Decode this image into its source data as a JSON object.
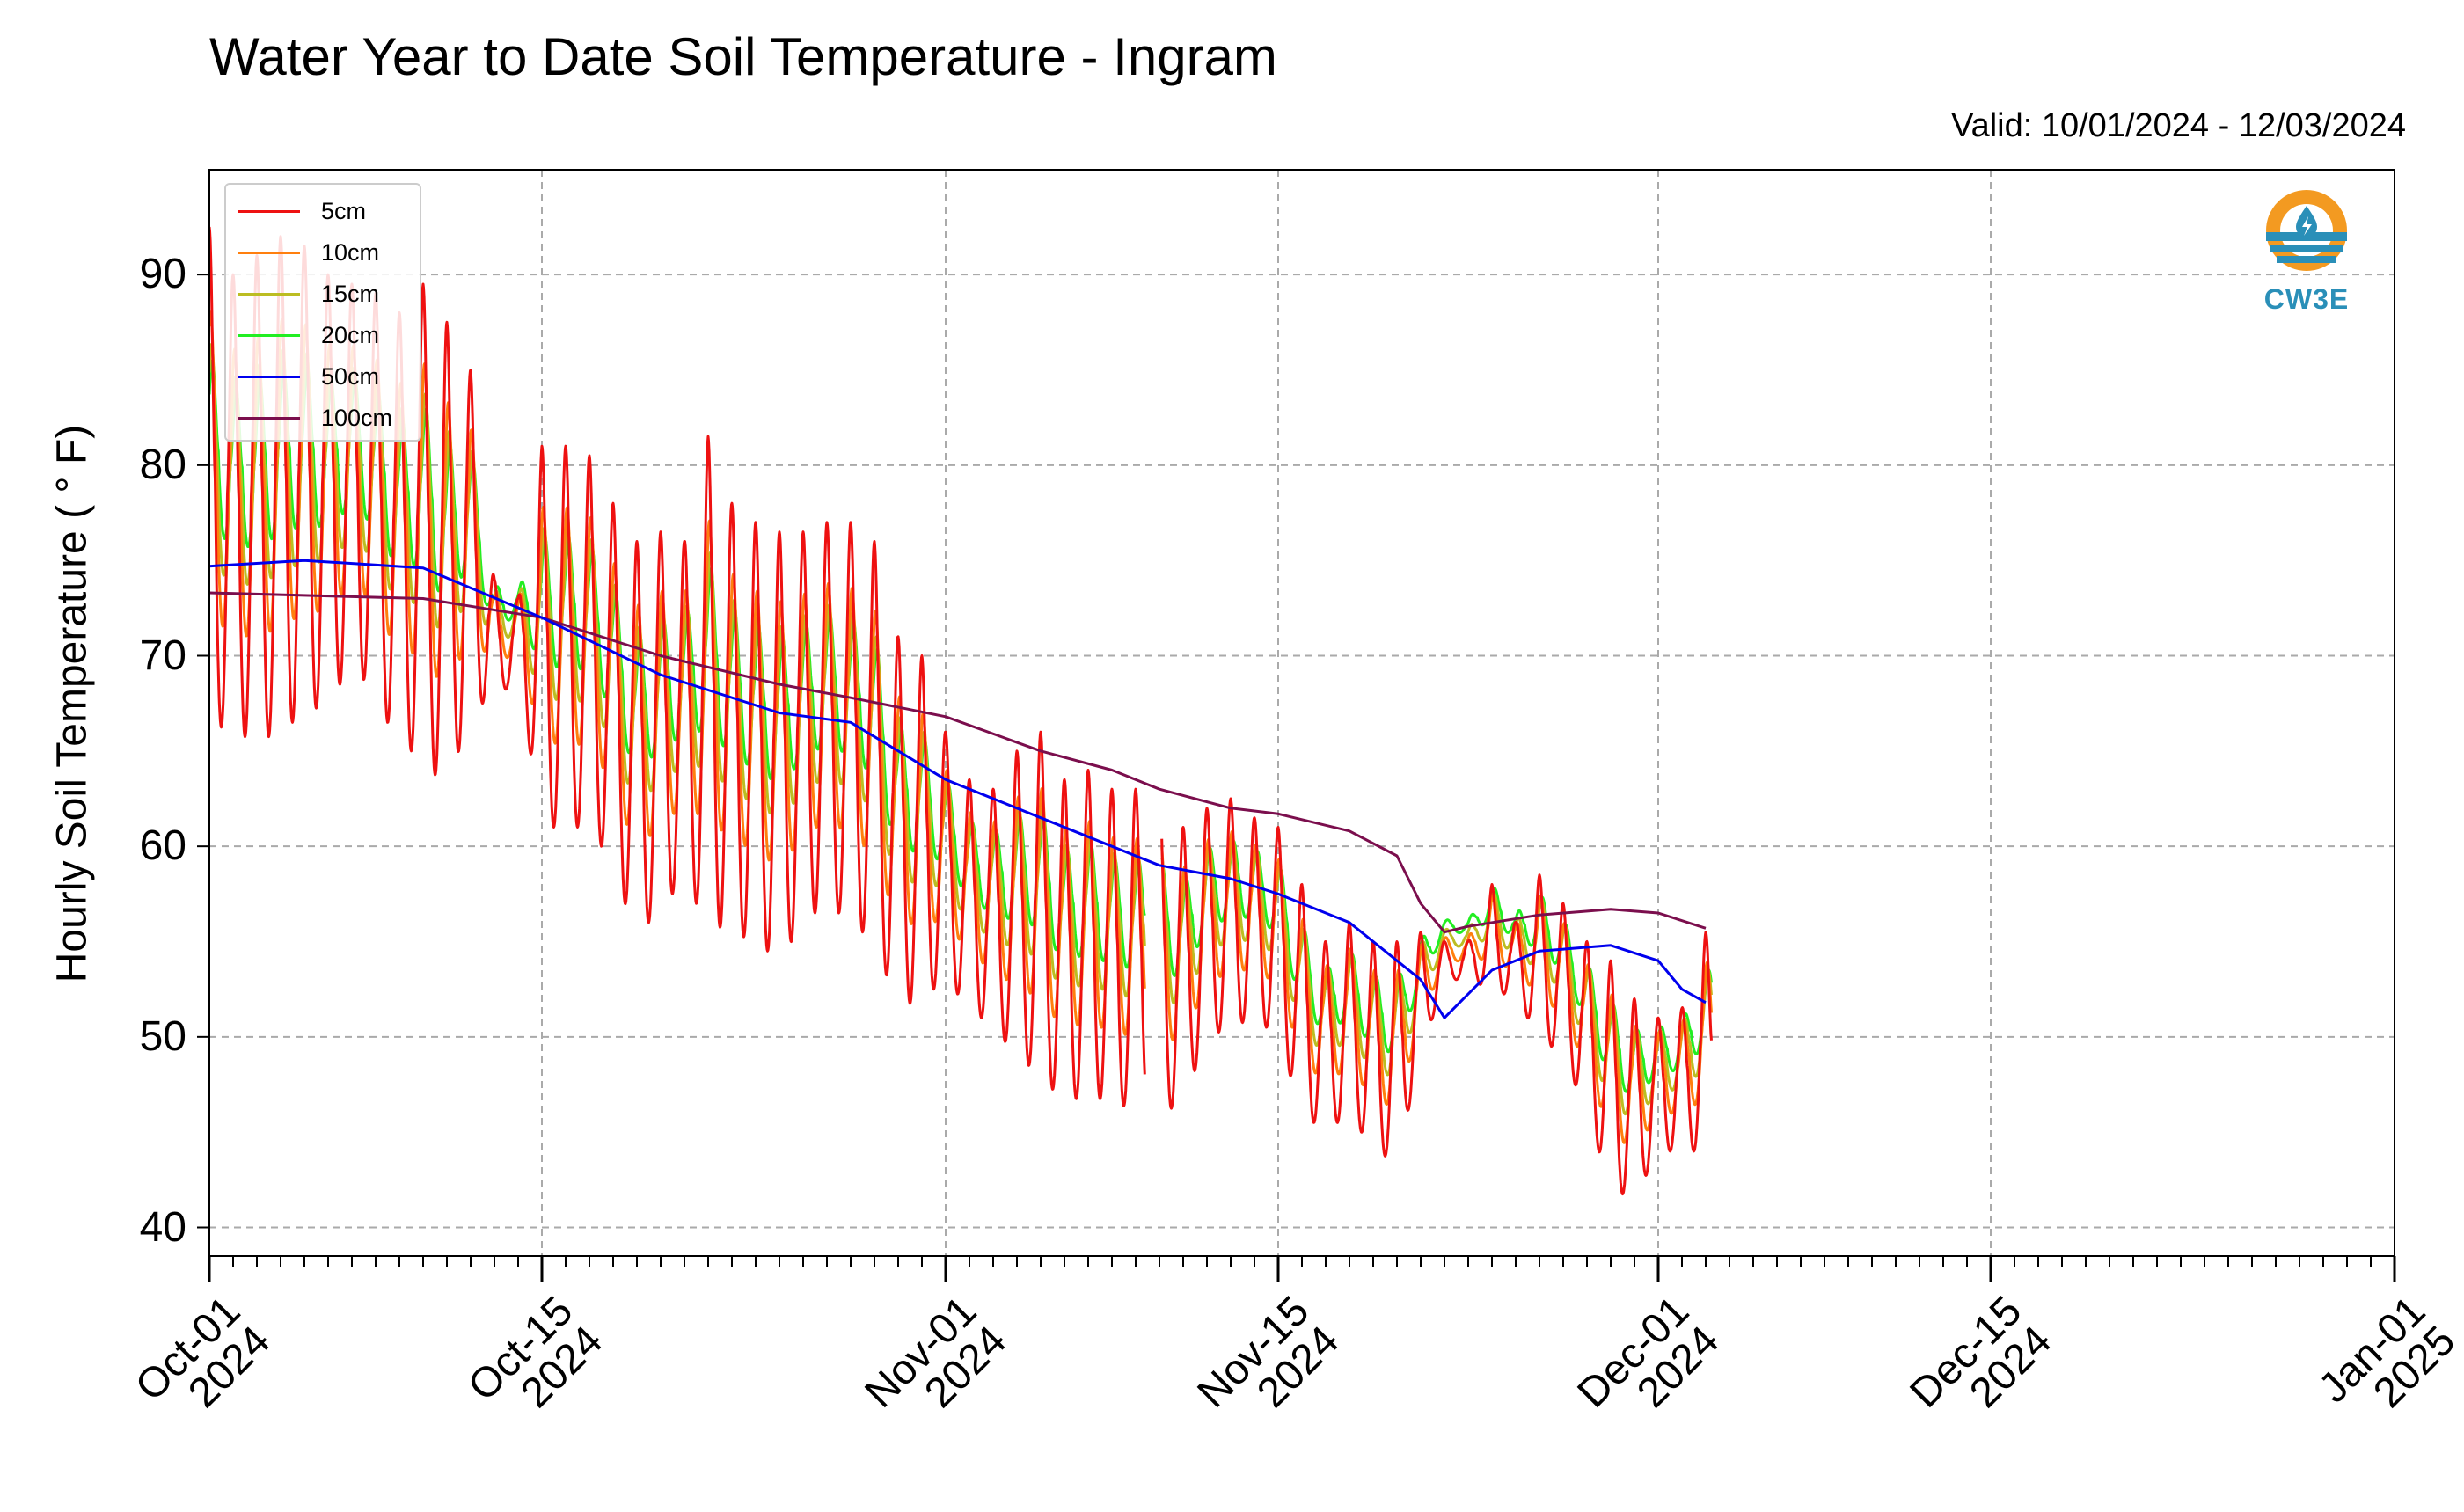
{
  "chart_data": {
    "type": "line",
    "title": "Water Year to Date Soil Temperature - Ingram",
    "subtitle": "Valid: 10/01/2024 - 12/03/2024",
    "xlabel": "",
    "ylabel": "Hourly Soil Temperature ($^\\circ$F)",
    "ylabel_display": "Hourly Soil Temperature ( ° F)",
    "xlim": [
      "2024-10-01",
      "2025-01-01"
    ],
    "ylim": [
      38.5,
      95.5
    ],
    "yticks": [
      40,
      50,
      60,
      70,
      80,
      90
    ],
    "xticks": [
      {
        "date": "2024-10-01",
        "label": "Oct-01\n2024"
      },
      {
        "date": "2024-10-15",
        "label": "Oct-15\n2024"
      },
      {
        "date": "2024-11-01",
        "label": "Nov-01\n2024"
      },
      {
        "date": "2024-11-15",
        "label": "Nov-15\n2024"
      },
      {
        "date": "2024-12-01",
        "label": "Dec-01\n2024"
      },
      {
        "date": "2024-12-15",
        "label": "Dec-15\n2024"
      },
      {
        "date": "2025-01-01",
        "label": "Jan-01\n2025"
      }
    ],
    "grid": true,
    "legend_position": "top-left",
    "series": [
      {
        "name": "5cm",
        "color": "#ee1111",
        "peak_dates": [
          "2024-10-01",
          "2024-10-02",
          "2024-10-03",
          "2024-10-04",
          "2024-10-05",
          "2024-10-06",
          "2024-10-07",
          "2024-10-08",
          "2024-10-09",
          "2024-10-10",
          "2024-10-11",
          "2024-10-12",
          "2024-10-13",
          "2024-10-14",
          "2024-10-15",
          "2024-10-16",
          "2024-10-17",
          "2024-10-18",
          "2024-10-19",
          "2024-10-20",
          "2024-10-21",
          "2024-10-22",
          "2024-10-23",
          "2024-10-24",
          "2024-10-25",
          "2024-10-26",
          "2024-10-27",
          "2024-10-28",
          "2024-10-29",
          "2024-10-30",
          "2024-10-31",
          "2024-11-01",
          "2024-11-02",
          "2024-11-03",
          "2024-11-04",
          "2024-11-05",
          "2024-11-06",
          "2024-11-07",
          "2024-11-08",
          "2024-11-10",
          "2024-11-11",
          "2024-11-12",
          "2024-11-13",
          "2024-11-14",
          "2024-11-15",
          "2024-11-16",
          "2024-11-17",
          "2024-11-18",
          "2024-11-19",
          "2024-11-20",
          "2024-11-21",
          "2024-11-22",
          "2024-11-23",
          "2024-11-24",
          "2024-11-25",
          "2024-11-26",
          "2024-11-27",
          "2024-11-28",
          "2024-11-29",
          "2024-11-30",
          "2024-12-01",
          "2024-12-02",
          "2024-12-03"
        ],
        "peaks": [
          92.5,
          90,
          91,
          92,
          91.5,
          90,
          89.5,
          89,
          88,
          89.5,
          87.5,
          85,
          74,
          73,
          81,
          81,
          80.5,
          78,
          76,
          76.5,
          76,
          81.5,
          78,
          77,
          76.5,
          76.5,
          77,
          77,
          76,
          71,
          70,
          66,
          63.5,
          63,
          65,
          66,
          63.5,
          64,
          63,
          63,
          61,
          62,
          62.5,
          61.5,
          61,
          58,
          55,
          56,
          55,
          55,
          55.5,
          55,
          55,
          58,
          56,
          58.5,
          57,
          55,
          54,
          52,
          51,
          51.5,
          55.5
        ],
        "troughs": [
          66.5,
          66,
          65.5,
          66,
          67,
          67.5,
          69.5,
          68,
          65,
          65,
          62.5,
          67.5,
          67.5,
          69,
          61,
          61,
          61,
          59,
          55,
          57,
          58,
          56,
          55.5,
          55,
          54,
          56,
          57,
          56,
          55,
          51.5,
          52,
          53,
          51.5,
          50.5,
          49,
          48,
          46.5,
          47,
          46.5,
          46,
          46.5,
          50,
          50.5,
          51,
          50,
          46,
          45,
          46,
          44,
          43.5,
          49,
          53,
          53,
          52.5,
          52,
          50,
          49,
          46,
          42,
          41.5,
          44,
          44,
          44
        ]
      },
      {
        "name": "10cm",
        "color": "#ff7f0e"
      },
      {
        "name": "15cm",
        "color": "#bcbd22"
      },
      {
        "name": "20cm",
        "color": "#22ee22"
      },
      {
        "name": "50cm",
        "color": "#0000ee",
        "x": [
          "2024-10-01",
          "2024-10-05",
          "2024-10-10",
          "2024-10-15",
          "2024-10-20",
          "2024-10-25",
          "2024-10-28",
          "2024-11-01",
          "2024-11-05",
          "2024-11-08",
          "2024-11-10",
          "2024-11-13",
          "2024-11-15",
          "2024-11-18",
          "2024-11-21",
          "2024-11-22",
          "2024-11-24",
          "2024-11-26",
          "2024-11-29",
          "2024-12-01",
          "2024-12-02",
          "2024-12-03"
        ],
        "y": [
          74.7,
          75,
          74.6,
          72,
          69,
          67,
          66.5,
          63.5,
          61.5,
          60,
          59,
          58.3,
          57.5,
          56,
          53,
          51,
          53.5,
          54.5,
          54.8,
          54,
          52.5,
          51.8
        ]
      },
      {
        "name": "100cm",
        "color": "#7b0e4d",
        "x": [
          "2024-10-01",
          "2024-10-10",
          "2024-10-15",
          "2024-10-20",
          "2024-10-25",
          "2024-10-28",
          "2024-11-01",
          "2024-11-05",
          "2024-11-08",
          "2024-11-10",
          "2024-11-13",
          "2024-11-15",
          "2024-11-18",
          "2024-11-20",
          "2024-11-21",
          "2024-11-22",
          "2024-11-23",
          "2024-11-26",
          "2024-11-29",
          "2024-12-01",
          "2024-12-03"
        ],
        "y": [
          73.3,
          73,
          72,
          70,
          68.5,
          67.8,
          66.8,
          65,
          64,
          63,
          62,
          61.7,
          60.8,
          59.5,
          57,
          55.5,
          55.8,
          56.4,
          56.7,
          56.5,
          55.7
        ]
      }
    ]
  },
  "logo": {
    "text": "CW3E"
  }
}
